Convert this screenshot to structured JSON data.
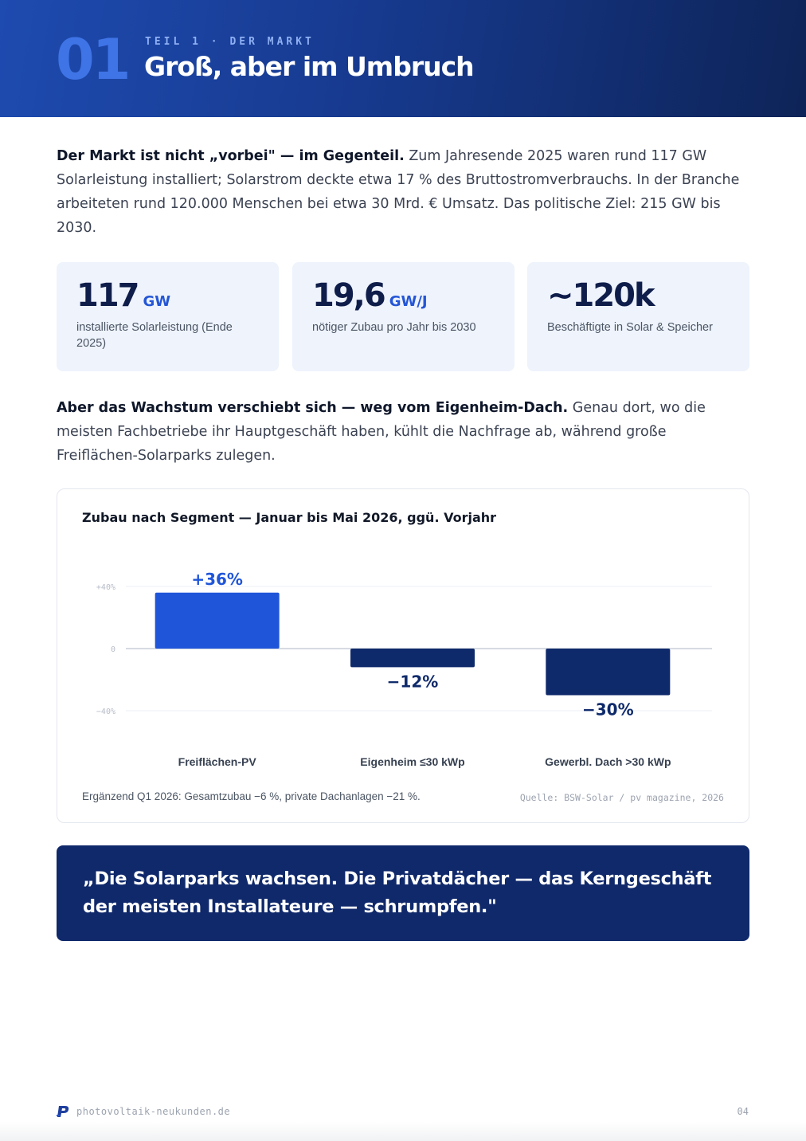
{
  "header": {
    "chapter_number": "01",
    "kicker": "TEIL 1 · DER MARKT",
    "title": "Groß, aber im Umbruch"
  },
  "intro": {
    "lead": "Der Markt ist nicht „vorbei\" — im Gegenteil.",
    "text": " Zum Jahresende 2025 waren rund 117 GW Solarleistung installiert; Solarstrom deckte etwa 17 % des Bruttostromverbrauchs. In der Branche arbeiteten rund 120.000 Menschen bei etwa 30 Mrd. € Umsatz. Das politische Ziel: 215 GW bis 2030."
  },
  "stats": [
    {
      "value": "117",
      "unit": "GW",
      "label": "installierte Solarleistung (Ende 2025)"
    },
    {
      "value": "19,6",
      "unit": "GW/J",
      "label": "nötiger Zubau pro Jahr bis 2030"
    },
    {
      "value": "~120k",
      "unit": "",
      "label": "Beschäftigte in Solar & Speicher"
    }
  ],
  "shift": {
    "lead": "Aber das Wachstum verschiebt sich — weg vom Eigenheim-Dach.",
    "text": " Genau dort, wo die meisten Fachbetriebe ihr Hauptgeschäft haben, kühlt die Nachfrage ab, während große Freiflächen-Solarparks zulegen."
  },
  "chart_data": {
    "type": "bar",
    "title": "Zubau nach Segment — Januar bis Mai 2026, ggü. Vorjahr",
    "categories": [
      "Freiflächen-PV",
      "Eigenheim ≤30 kWp",
      "Gewerbl. Dach >30 kWp"
    ],
    "values": [
      36,
      -12,
      -30
    ],
    "value_labels": [
      "+36%",
      "−12%",
      "−30%"
    ],
    "ylim": [
      -40,
      40
    ],
    "yticks": [
      {
        "value": 40,
        "label": "+40%"
      },
      {
        "value": 0,
        "label": "0"
      },
      {
        "value": -40,
        "label": "−40%"
      }
    ],
    "grid": true,
    "colors": {
      "positive": "#1f55d9",
      "negative": "#0f2a6b"
    },
    "note": "Ergänzend Q1 2026: Gesamtzubau −6 %, private Dachanlagen −21 %.",
    "source": "Quelle: BSW-Solar / pv magazine, 2026"
  },
  "quote": {
    "text": "„Die Solarparks wachsen. Die Privatdächer — das Kerngeschäft der meisten Installateure — schrumpfen.\""
  },
  "footer": {
    "site": "photovoltaik-neukunden.de",
    "page": "04",
    "logo_icon": "p-logo-icon"
  },
  "colors": {
    "header_start": "#1e4bb0",
    "header_end": "#0e2458",
    "accent": "#2456d6",
    "navy": "#10296b",
    "stat_bg": "#eef3fc"
  }
}
